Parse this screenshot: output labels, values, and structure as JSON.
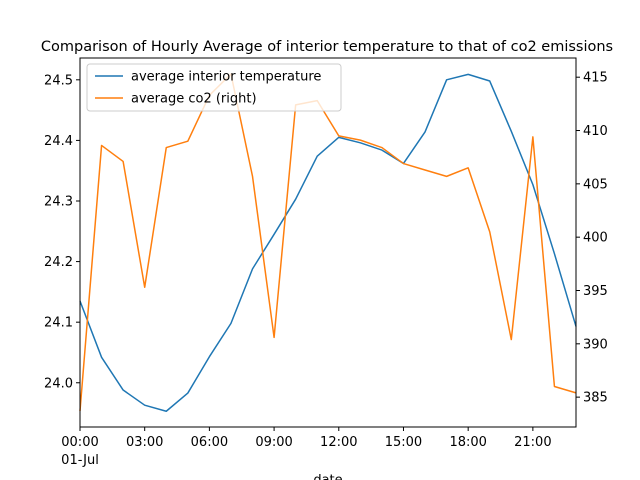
{
  "chart_data": {
    "type": "line",
    "title": "Comparison of Hourly Average of interior temperature to that of co2 emissions",
    "xlabel": "date",
    "x": [
      "00:00",
      "01:00",
      "02:00",
      "03:00",
      "04:00",
      "05:00",
      "06:00",
      "07:00",
      "08:00",
      "09:00",
      "10:00",
      "11:00",
      "12:00",
      "13:00",
      "14:00",
      "15:00",
      "16:00",
      "17:00",
      "18:00",
      "19:00",
      "20:00",
      "21:00",
      "22:00",
      "23:00"
    ],
    "x_tick_labels": [
      {
        "index": 0,
        "label": "00:00",
        "sublabel": "01-Jul"
      },
      {
        "index": 3,
        "label": "03:00"
      },
      {
        "index": 6,
        "label": "06:00"
      },
      {
        "index": 9,
        "label": "09:00"
      },
      {
        "index": 12,
        "label": "12:00"
      },
      {
        "index": 15,
        "label": "15:00"
      },
      {
        "index": 18,
        "label": "18:00"
      },
      {
        "index": 21,
        "label": "21:00"
      }
    ],
    "series": [
      {
        "name": "average interior temperature",
        "axis": "left",
        "color": "#1f77b4",
        "values": [
          24.135,
          24.042,
          23.988,
          23.963,
          23.953,
          23.983,
          24.043,
          24.098,
          24.188,
          24.245,
          24.303,
          24.374,
          24.405,
          24.396,
          24.384,
          24.362,
          24.414,
          24.5,
          24.509,
          24.498,
          24.415,
          24.327,
          24.213,
          24.093
        ]
      },
      {
        "name": "average co2 (right)",
        "axis": "right",
        "color": "#ff7f0e",
        "values": [
          383.7,
          408.6,
          407.1,
          395.3,
          408.4,
          409.0,
          413.3,
          415.3,
          405.7,
          390.6,
          412.4,
          412.8,
          409.5,
          409.1,
          408.4,
          406.9,
          406.3,
          405.7,
          406.5,
          400.5,
          390.4,
          409.4,
          386.0,
          385.4
        ]
      }
    ],
    "y_left": {
      "ylim": [
        23.927,
        24.536
      ],
      "ticks": [
        "24.0",
        "24.1",
        "24.2",
        "24.3",
        "24.4",
        "24.5"
      ]
    },
    "y_right": {
      "ylim": [
        382.2,
        416.8
      ],
      "ticks": [
        "385",
        "390",
        "395",
        "400",
        "405",
        "410",
        "415"
      ]
    },
    "legend": {
      "placement": "upper-left"
    },
    "grid": false
  }
}
